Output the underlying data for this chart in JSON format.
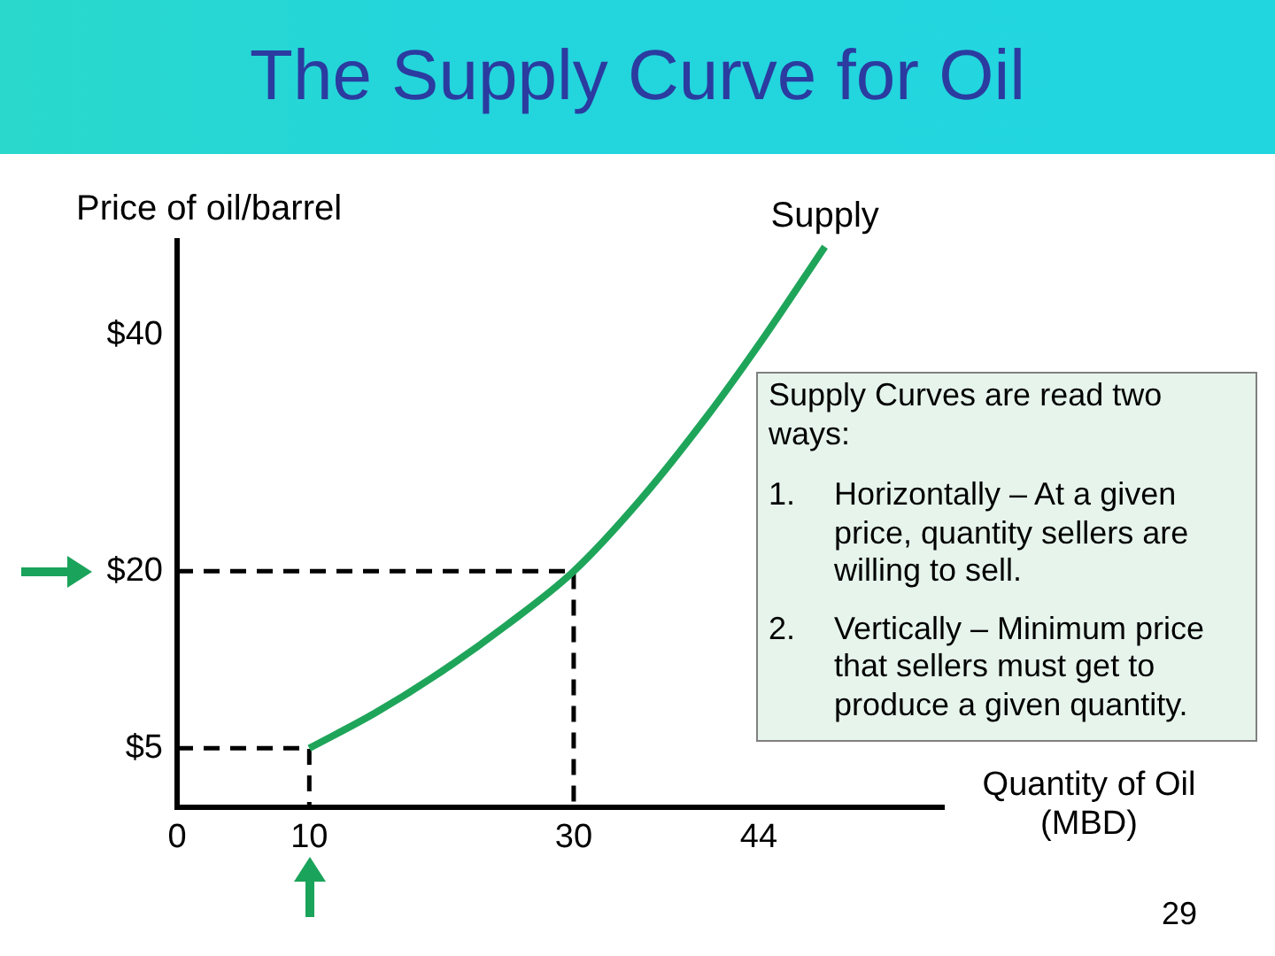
{
  "chart_data": {
    "type": "line",
    "title": "The Supply Curve for Oil",
    "xlabel": "Quantity of Oil (MBD)",
    "ylabel": "Price of oil/barrel",
    "annotations": [
      "Supply Curves are read two ways:",
      "1. Horizontally – At a given price, quantity sellers are willing to sell.",
      "2. Vertically – Minimum price that sellers must get to produce a given quantity.",
      "29"
    ],
    "xlim": [
      0,
      58
    ],
    "ylim": [
      0,
      48
    ],
    "xticks": [
      0,
      10,
      30,
      44
    ],
    "yticks": [
      {
        "value": 5,
        "label": "$5"
      },
      {
        "value": 20,
        "label": "$20"
      },
      {
        "value": 40,
        "label": "$40"
      }
    ],
    "grid": false,
    "legend": false,
    "marker": "none",
    "series": [
      {
        "name": "Supply",
        "color": "#1fa55a",
        "line_style": "solid",
        "x": [
          10,
          15,
          20,
          25,
          30,
          35,
          40,
          44.5,
          49
        ],
        "values": [
          5,
          8,
          11.5,
          15.5,
          20,
          26,
          33,
          40,
          47.5
        ]
      },
      {
        "color": "#000000",
        "line_style": "dashed",
        "x": [
          0,
          30,
          30
        ],
        "values": [
          20,
          20,
          0
        ]
      },
      {
        "color": "#000000",
        "line_style": "dashed",
        "x": [
          0,
          10,
          10
        ],
        "values": [
          5,
          5,
          0
        ]
      }
    ]
  }
}
